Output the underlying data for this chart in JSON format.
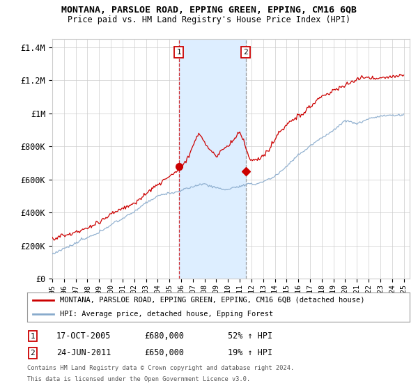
{
  "title": "MONTANA, PARSLOE ROAD, EPPING GREEN, EPPING, CM16 6QB",
  "subtitle": "Price paid vs. HM Land Registry's House Price Index (HPI)",
  "ylabel_ticks": [
    "£0",
    "£200K",
    "£400K",
    "£600K",
    "£800K",
    "£1M",
    "£1.2M",
    "£1.4M"
  ],
  "ytick_values": [
    0,
    200000,
    400000,
    600000,
    800000,
    1000000,
    1200000,
    1400000
  ],
  "ylim": [
    0,
    1450000
  ],
  "xlim_start": 1995.0,
  "xlim_end": 2025.5,
  "transaction1": {
    "date": 2005.8,
    "price": 680000,
    "label": "1",
    "text": "17-OCT-2005",
    "amount": "£680,000",
    "hpi": "52% ↑ HPI"
  },
  "transaction2": {
    "date": 2011.5,
    "price": 650000,
    "label": "2",
    "text": "24-JUN-2011",
    "amount": "£650,000",
    "hpi": "19% ↑ HPI"
  },
  "legend_line1": "MONTANA, PARSLOE ROAD, EPPING GREEN, EPPING, CM16 6QB (detached house)",
  "legend_line2": "HPI: Average price, detached house, Epping Forest",
  "footer1": "Contains HM Land Registry data © Crown copyright and database right 2024.",
  "footer2": "This data is licensed under the Open Government Licence v3.0.",
  "price_color": "#cc0000",
  "hpi_color": "#88aacc",
  "shade_color": "#ddeeff",
  "grid_color": "#cccccc",
  "background_color": "#ffffff",
  "xtick_years": [
    1995,
    1996,
    1997,
    1998,
    1999,
    2000,
    2001,
    2002,
    2003,
    2004,
    2005,
    2006,
    2007,
    2008,
    2009,
    2010,
    2011,
    2012,
    2013,
    2014,
    2015,
    2016,
    2017,
    2018,
    2019,
    2020,
    2021,
    2022,
    2023,
    2024,
    2025
  ]
}
